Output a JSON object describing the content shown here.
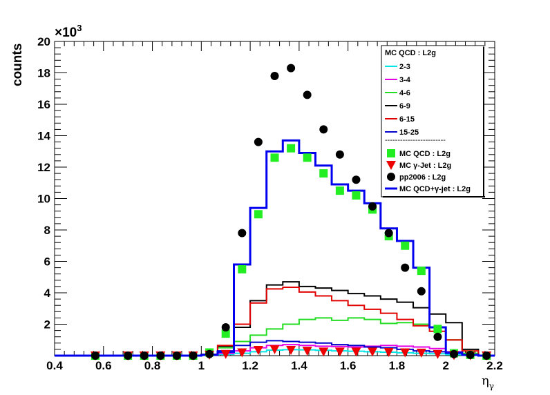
{
  "chart_data": {
    "type": "histogram",
    "ylabel": "counts",
    "xlabel_main": "η",
    "xlabel_sub": "γ",
    "y_exponent_base": "×10",
    "y_exponent_power": "3",
    "xlim": [
      0.4,
      2.2
    ],
    "ylim": [
      0,
      20000
    ],
    "x_ticks": [
      "0.4",
      "0.6",
      "0.8",
      "1",
      "1.2",
      "1.4",
      "1.6",
      "1.8",
      "2",
      "2.2"
    ],
    "y_ticks": [
      "2",
      "4",
      "6",
      "8",
      "10",
      "12",
      "14",
      "16",
      "18",
      "20"
    ],
    "bin_edges": [
      0.4,
      0.4667,
      0.5333,
      0.6,
      0.6667,
      0.7333,
      0.8,
      0.8667,
      0.9333,
      1.0,
      1.0667,
      1.1333,
      1.2,
      1.2667,
      1.3333,
      1.4,
      1.4667,
      1.5333,
      1.6,
      1.6667,
      1.7333,
      1.8,
      1.8667,
      1.9333,
      2.0,
      2.0667,
      2.1333,
      2.2
    ],
    "legend_title": "MC QCD : L2g",
    "legend_separator": "------------------------",
    "series_lines": [
      {
        "name": "2-3",
        "color": "#00e5e5",
        "values": [
          0,
          0,
          0,
          0,
          0,
          0,
          0,
          0,
          0,
          20,
          80,
          150,
          250,
          350,
          380,
          370,
          340,
          300,
          280,
          250,
          220,
          180,
          150,
          120,
          60,
          20,
          0
        ]
      },
      {
        "name": "3-4",
        "color": "#e500e5",
        "values": [
          0,
          0,
          0,
          0,
          0,
          0,
          0,
          0,
          0,
          30,
          150,
          300,
          500,
          650,
          700,
          650,
          600,
          580,
          550,
          600,
          650,
          600,
          550,
          450,
          250,
          50,
          0
        ]
      },
      {
        "name": "4-6",
        "color": "#22dd22",
        "values": [
          0,
          0,
          0,
          0,
          0,
          0,
          0,
          0,
          0,
          50,
          500,
          900,
          1300,
          1700,
          2000,
          2300,
          2400,
          2250,
          2400,
          2300,
          2050,
          2100,
          2000,
          1800,
          1000,
          150,
          0
        ]
      },
      {
        "name": "6-9",
        "color": "#000000",
        "values": [
          0,
          0,
          0,
          0,
          0,
          0,
          0,
          0,
          0,
          80,
          600,
          1800,
          3500,
          4500,
          4700,
          4400,
          4300,
          4150,
          3950,
          3800,
          3600,
          3400,
          3050,
          2650,
          2100,
          400,
          0
        ]
      },
      {
        "name": "6-15",
        "color": "#e00000",
        "values": [
          0,
          0,
          0,
          0,
          0,
          0,
          0,
          0,
          0,
          70,
          650,
          2000,
          3350,
          4250,
          4350,
          4050,
          3800,
          3500,
          3200,
          2950,
          2700,
          2300,
          1900,
          1550,
          1000,
          300,
          0
        ]
      },
      {
        "name": "15-25",
        "color": "#0000cc",
        "values": [
          0,
          0,
          0,
          0,
          0,
          0,
          0,
          0,
          0,
          20,
          300,
          650,
          850,
          950,
          900,
          850,
          800,
          700,
          650,
          550,
          500,
          400,
          300,
          250,
          150,
          30,
          0
        ]
      }
    ],
    "series_markers": [
      {
        "name": "MC QCD : L2g",
        "marker": "square",
        "color": "#22ee22",
        "x": [
          0.5667,
          0.7,
          0.7667,
          0.8333,
          0.9,
          0.9667,
          1.0333,
          1.1,
          1.1667,
          1.2333,
          1.3,
          1.3667,
          1.4333,
          1.5,
          1.5667,
          1.6333,
          1.7,
          1.7667,
          1.8333,
          1.9,
          1.9667,
          2.0333,
          2.1,
          2.1667
        ],
        "y": [
          0,
          0,
          0,
          0,
          0,
          0,
          200,
          1400,
          5500,
          9000,
          12600,
          13200,
          12600,
          11600,
          10500,
          10200,
          9300,
          7600,
          7000,
          5400,
          1700,
          150,
          50,
          0
        ]
      },
      {
        "name": "MC γ-Jet : L2g",
        "marker": "triangle-down",
        "color": "#ee0000",
        "x": [
          0.5667,
          0.7,
          0.7667,
          0.8333,
          0.9,
          0.9667,
          1.0333,
          1.1,
          1.1667,
          1.2333,
          1.3,
          1.3667,
          1.4333,
          1.5,
          1.5667,
          1.6333,
          1.7,
          1.7667,
          1.8333,
          1.9,
          1.9667,
          2.0333,
          2.1,
          2.1667
        ],
        "y": [
          0,
          0,
          0,
          0,
          0,
          0,
          50,
          100,
          200,
          350,
          400,
          350,
          300,
          250,
          250,
          250,
          250,
          220,
          200,
          180,
          100,
          30,
          10,
          0
        ]
      },
      {
        "name": "pp2006 : L2g",
        "marker": "circle",
        "color": "#000000",
        "x": [
          0.5667,
          0.7,
          0.7667,
          0.8333,
          0.9,
          0.9667,
          1.0333,
          1.1,
          1.1667,
          1.2333,
          1.3,
          1.3667,
          1.4333,
          1.5,
          1.5667,
          1.6333,
          1.7,
          1.7667,
          1.8333,
          1.9,
          1.9667,
          2.0333,
          2.1,
          2.1667
        ],
        "y": [
          0,
          0,
          0,
          0,
          0,
          0,
          100,
          1800,
          7800,
          13600,
          17800,
          18300,
          16600,
          14400,
          12800,
          11200,
          9500,
          7800,
          5600,
          4100,
          1200,
          100,
          50,
          0
        ]
      }
    ],
    "series_sum": {
      "name": "MC QCD+γ-jet : L2g",
      "color": "#0000ee",
      "values": [
        0,
        0,
        0,
        0,
        0,
        0,
        0,
        0,
        0,
        50,
        250,
        5800,
        9400,
        13000,
        13700,
        12900,
        12100,
        10900,
        10500,
        9700,
        8100,
        7300,
        5600,
        1800,
        200,
        50,
        0
      ]
    }
  }
}
